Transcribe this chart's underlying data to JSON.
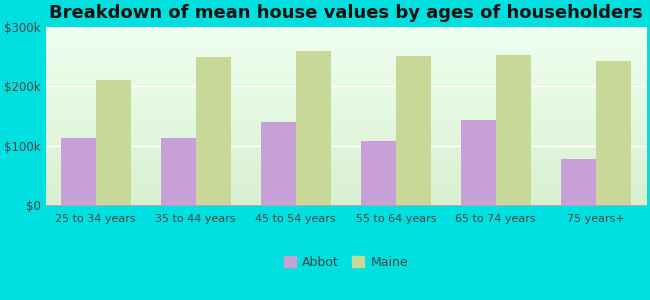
{
  "title": "Breakdown of mean house values by ages of householders",
  "categories": [
    "25 to 34 years",
    "35 to 44 years",
    "45 to 54 years",
    "55 to 64 years",
    "65 to 74 years",
    "75 years+"
  ],
  "abbot_values": [
    112000,
    113000,
    140000,
    108000,
    143000,
    78000
  ],
  "maine_values": [
    210000,
    248000,
    258000,
    250000,
    252000,
    242000
  ],
  "abbot_color": "#c8a0d8",
  "maine_color": "#c8d898",
  "background_top": "#d8f0d0",
  "background_bottom": "#f0fff0",
  "outer_background": "#00e0e0",
  "ylim": [
    0,
    300000
  ],
  "yticks": [
    0,
    100000,
    200000,
    300000
  ],
  "ytick_labels": [
    "$0",
    "$100k",
    "$200k",
    "$300k"
  ],
  "legend_labels": [
    "Abbot",
    "Maine"
  ],
  "title_fontsize": 13,
  "bar_width": 0.35
}
